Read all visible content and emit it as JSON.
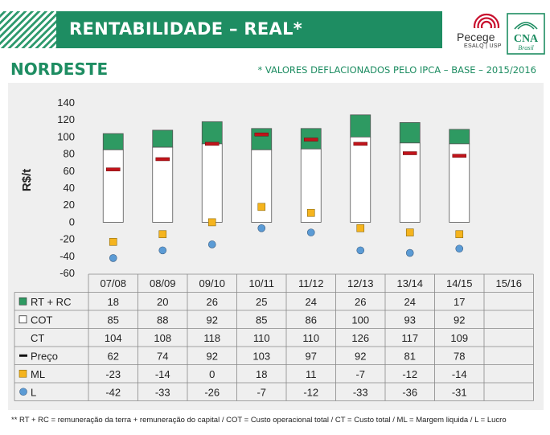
{
  "header": {
    "title": "RENTABILIDADE – REAL*",
    "region": "NORDESTE",
    "note": "* VALORES DEFLACIONADOS PELO IPCA – BASE – 2015/2016",
    "logos": {
      "pecege": "Pecege",
      "pecege_sub": "ESALQ | USP",
      "cna": "CNA",
      "cna_sub": "Brasil"
    }
  },
  "chart_data": {
    "type": "bar",
    "ylabel": "R$/t",
    "ylim": [
      -60,
      140
    ],
    "yticks": [
      -60,
      -40,
      -20,
      0,
      20,
      40,
      60,
      80,
      100,
      120,
      140
    ],
    "grid": false,
    "categories": [
      "07/08",
      "08/09",
      "09/10",
      "10/11",
      "11/12",
      "12/13",
      "13/14",
      "14/15",
      "15/16"
    ],
    "series": [
      {
        "key": "rtrc",
        "name": "RT + RC",
        "marker": "green-square",
        "values": [
          18,
          20,
          26,
          25,
          24,
          26,
          24,
          17,
          null
        ]
      },
      {
        "key": "cot",
        "name": "COT",
        "marker": "white-square",
        "values": [
          85,
          88,
          92,
          85,
          86,
          100,
          93,
          92,
          null
        ]
      },
      {
        "key": "ct",
        "name": "CT",
        "marker": "none",
        "values": [
          104,
          108,
          118,
          110,
          110,
          126,
          117,
          109,
          null
        ]
      },
      {
        "key": "preco",
        "name": "Preço",
        "marker": "red-dash",
        "values": [
          62,
          74,
          92,
          103,
          97,
          92,
          81,
          78,
          null
        ]
      },
      {
        "key": "ml",
        "name": "ML",
        "marker": "yellow-square",
        "values": [
          -23,
          -14,
          0,
          18,
          11,
          -7,
          -12,
          -14,
          null
        ]
      },
      {
        "key": "l",
        "name": "L",
        "marker": "blue-circle",
        "values": [
          -42,
          -33,
          -26,
          -7,
          -12,
          -33,
          -36,
          -31,
          null
        ]
      }
    ]
  },
  "colors": {
    "header_green": "#1e8d62",
    "rtrc_green": "#2e9a62",
    "preco_red": "#c0141b",
    "ml_yellow": "#f5b41e",
    "l_blue": "#5b9bd5",
    "panel_bg": "#efefef"
  },
  "footer": "** RT + RC = remuneração da terra + remuneração do capital / COT = Custo operacional total / CT = Custo total / ML = Margem liquida / L = Lucro"
}
